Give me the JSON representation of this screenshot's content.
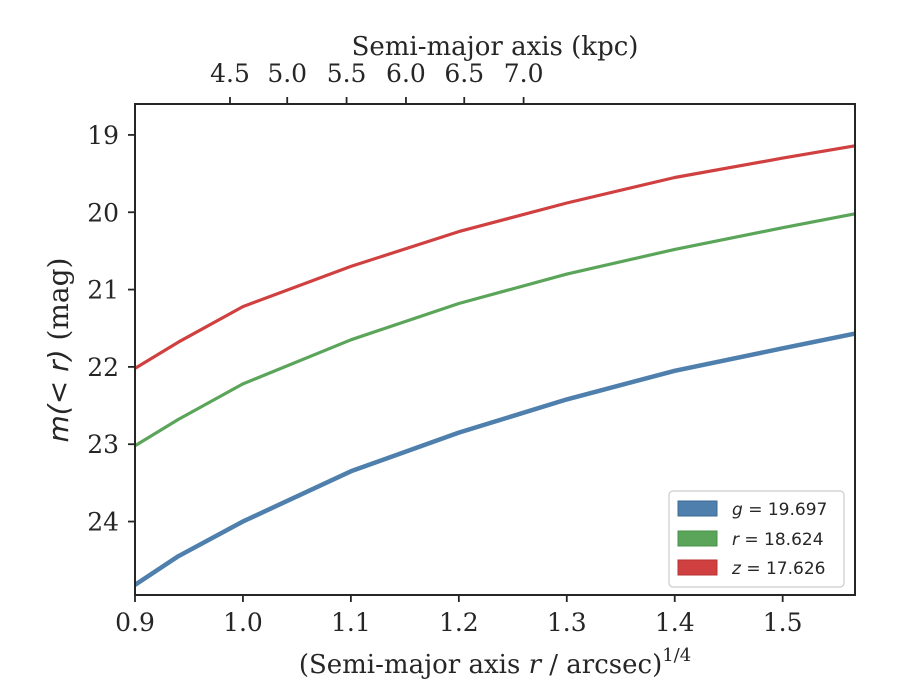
{
  "chart_data": {
    "type": "line",
    "xlabel_main": "(Semi-major axis ",
    "xlabel_var": "r",
    "xlabel_rest": " / arcsec)",
    "xlabel_sup": "1/4",
    "xlabel_top": "Semi-major axis (kpc)",
    "ylabel_pre": "m",
    "ylabel_mid": "(< r)",
    "ylabel_post": " (mag)",
    "xlim": [
      0.9,
      1.567
    ],
    "ylim": [
      24.95,
      18.6
    ],
    "y_inverted": true,
    "xticks": [
      0.9,
      1.0,
      1.1,
      1.2,
      1.3,
      1.4,
      1.5
    ],
    "xtick_labels": [
      "0.9",
      "1.0",
      "1.1",
      "1.2",
      "1.3",
      "1.4",
      "1.5"
    ],
    "yticks": [
      19,
      20,
      21,
      22,
      23,
      24
    ],
    "ytick_labels": [
      "19",
      "20",
      "21",
      "22",
      "23",
      "24"
    ],
    "top_ticks_kpc": [
      4.5,
      5.0,
      5.5,
      6.0,
      6.5,
      7.0
    ],
    "top_tick_labels": [
      "4.5",
      "5.0",
      "5.5",
      "6.0",
      "6.5",
      "7.0"
    ],
    "top_tick_positions_x": [
      0.988,
      1.041,
      1.096,
      1.151,
      1.205,
      1.26
    ],
    "x": [
      0.9,
      0.94,
      1.0,
      1.1,
      1.2,
      1.3,
      1.4,
      1.5,
      1.567
    ],
    "series": [
      {
        "name_var": "g",
        "name_val": " = 19.697",
        "color": "#4e7fad",
        "values": [
          24.82,
          24.45,
          24.0,
          23.35,
          22.85,
          22.42,
          22.05,
          21.76,
          21.57
        ]
      },
      {
        "name_var": "r",
        "name_val": " = 18.624",
        "color": "#5aa55a",
        "values": [
          23.02,
          22.68,
          22.22,
          21.65,
          21.18,
          20.8,
          20.48,
          20.2,
          20.02
        ]
      },
      {
        "name_var": "z",
        "name_val": " = 17.626",
        "color": "#d04040",
        "values": [
          22.02,
          21.68,
          21.22,
          20.7,
          20.25,
          19.88,
          19.55,
          19.3,
          19.14
        ]
      }
    ],
    "grid": false,
    "legend_position": "lower-right"
  }
}
